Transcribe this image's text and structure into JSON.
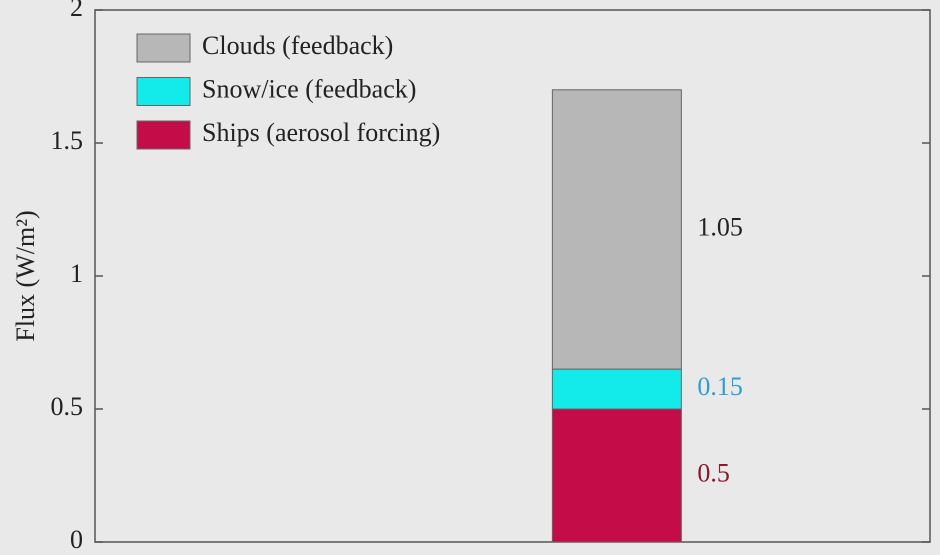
{
  "chart_data": {
    "type": "stacked_bar",
    "y_label": "Flux (W/m²)",
    "categories": [
      null
    ],
    "series": [
      {
        "name": "Ships (aerosol forcing)",
        "color": "#c40c48",
        "label_color": "#8b1a2b",
        "values": [
          0.5
        ]
      },
      {
        "name": "Snow/ice (feedback)",
        "color": "#13eaea",
        "label_color": "#2a9fd6",
        "values": [
          0.15
        ]
      },
      {
        "name": "Clouds (feedback)",
        "color": "#b7b7b7",
        "label_color": "#222222",
        "values": [
          1.05
        ]
      }
    ],
    "ylim": [
      0,
      2
    ],
    "yticks": [
      0,
      0.5,
      1,
      1.5,
      2
    ],
    "legend": "upper-left",
    "legend_order": "reversed"
  }
}
